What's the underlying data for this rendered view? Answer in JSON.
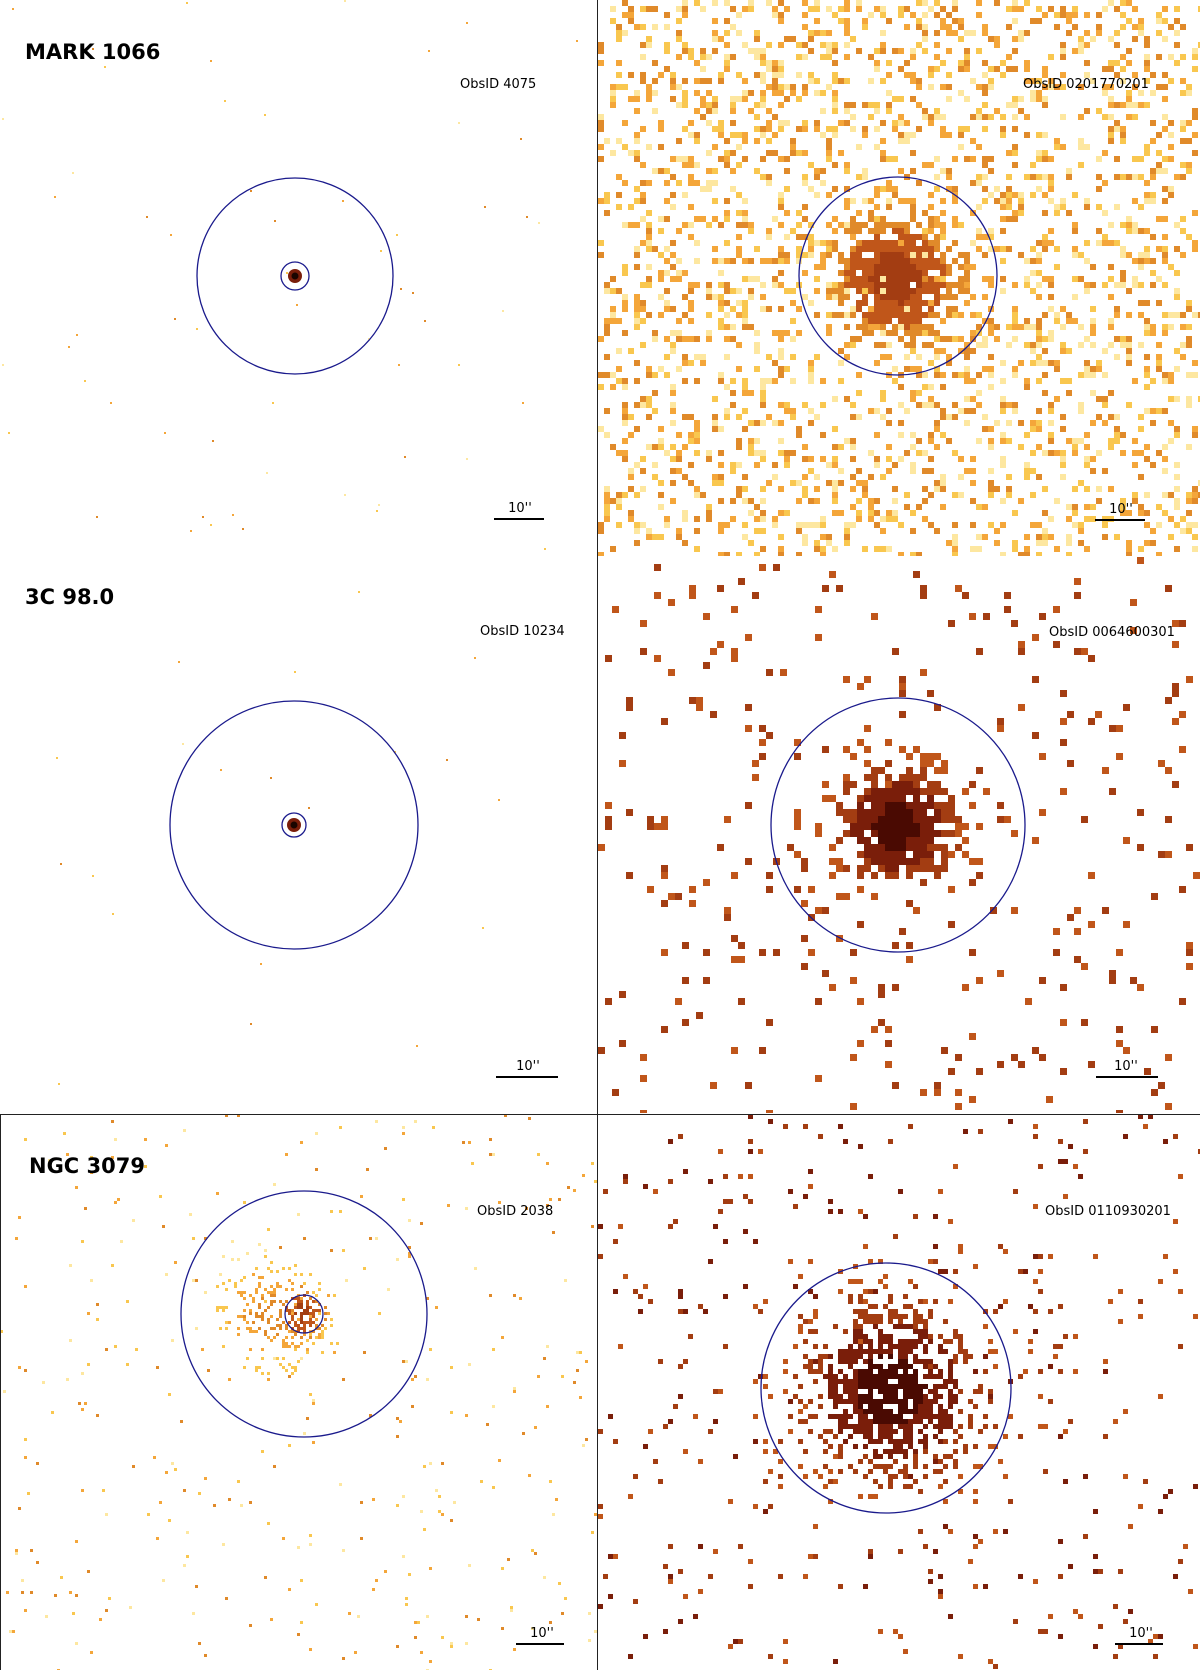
{
  "rows": [
    {
      "source": "MARK 1066",
      "chandra": {
        "obsid": "ObsID 4075",
        "scale": "10''"
      },
      "xmm": {
        "obsid": "ObsID 0201770201",
        "scale": "10''"
      }
    },
    {
      "source": "3C 98.0",
      "chandra": {
        "obsid": "ObsID 10234",
        "scale": "10''"
      },
      "xmm": {
        "obsid": "ObsID 0064600301",
        "scale": "10''"
      }
    },
    {
      "source": "NGC 3079",
      "chandra": {
        "obsid": "ObsID 2038",
        "scale": "10''"
      },
      "xmm": {
        "obsid": "ObsID 0110930201",
        "scale": "10''"
      }
    }
  ],
  "colors": {
    "circle": "#1a1a8c",
    "palette_light": [
      "#fde7a0",
      "#f9c74f",
      "#f4a63a",
      "#e08a2a"
    ],
    "palette_dark": [
      "#c0561a",
      "#a33d12",
      "#7a1e0a",
      "#4a0a02"
    ]
  }
}
